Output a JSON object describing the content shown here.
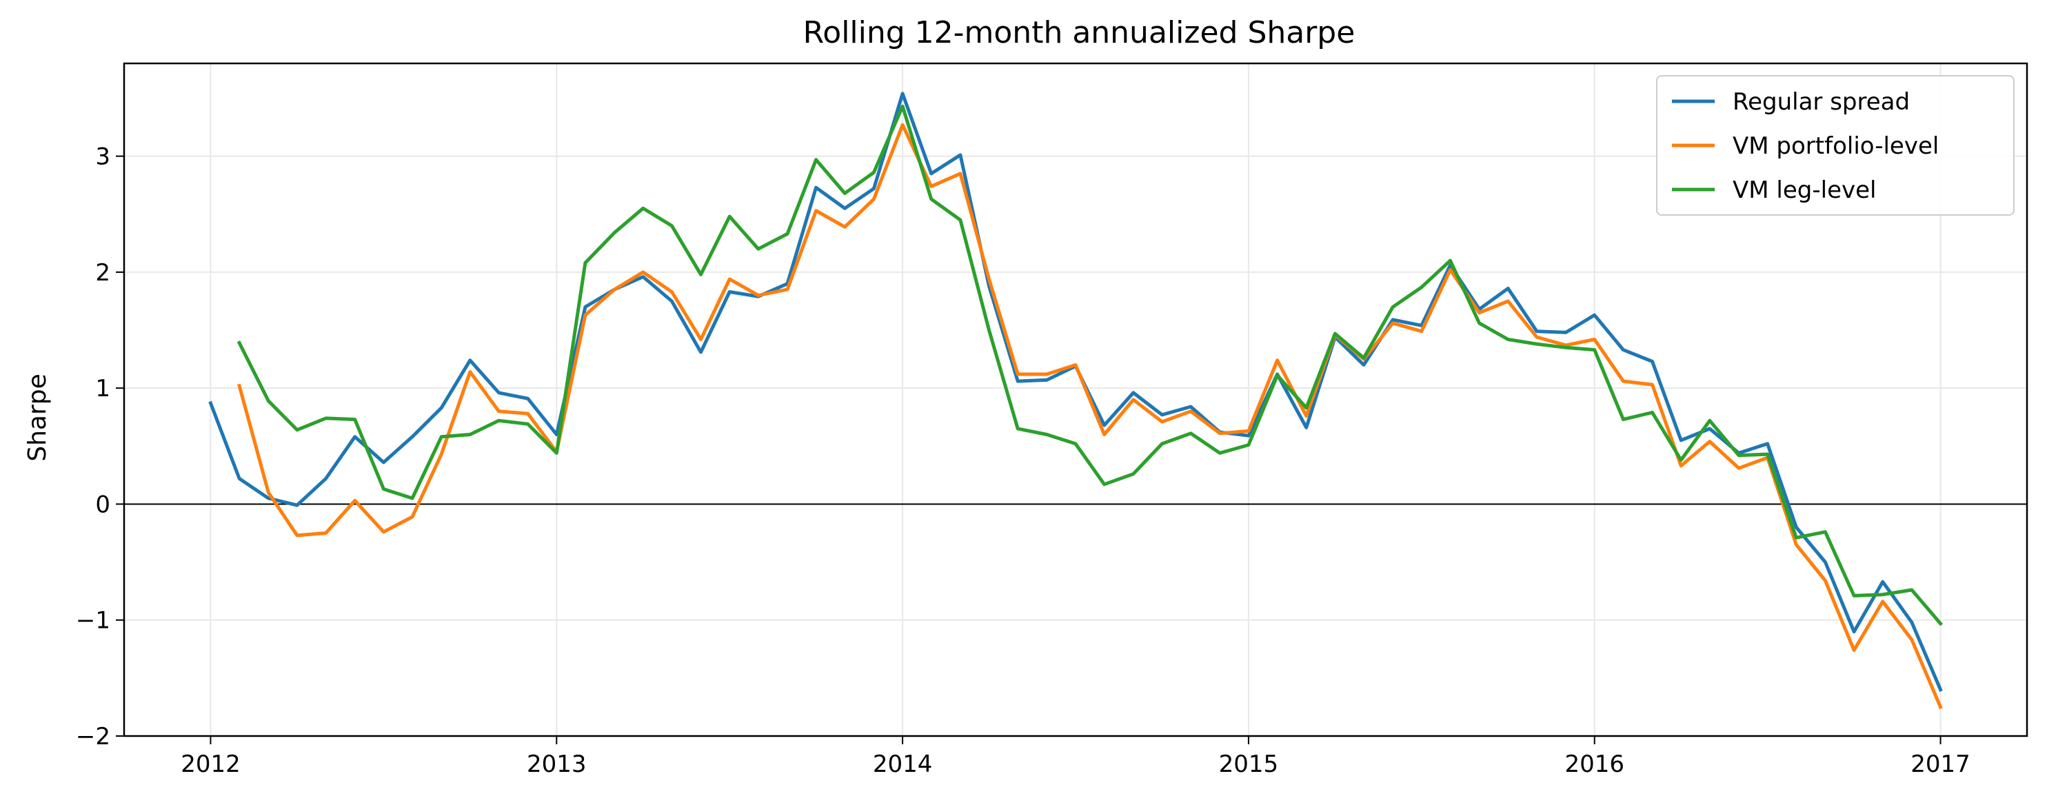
{
  "chart_data": {
    "type": "line",
    "title": "Rolling 12-month annualized Sharpe",
    "xlabel": "",
    "ylabel": "Sharpe",
    "xlim": [
      2011.75,
      2017.25
    ],
    "ylim": [
      -2,
      3.8
    ],
    "x_ticks": [
      2012,
      2013,
      2014,
      2015,
      2016,
      2017
    ],
    "x_tick_labels": [
      "2012",
      "2013",
      "2014",
      "2015",
      "2016",
      "2017"
    ],
    "y_ticks": [
      -2,
      -1,
      0,
      1,
      2,
      3
    ],
    "y_tick_labels": [
      "−2",
      "−1",
      "0",
      "1",
      "2",
      "3"
    ],
    "grid": true,
    "zero_line": true,
    "legend_position": "top-right",
    "series": [
      {
        "name": "Regular spread",
        "color": "#1f77b4",
        "x": [
          2012.0,
          2012.083,
          2012.167,
          2012.25,
          2012.333,
          2012.417,
          2012.5,
          2012.583,
          2012.667,
          2012.75,
          2012.833,
          2012.917,
          2013.0,
          2013.083,
          2013.167,
          2013.25,
          2013.333,
          2013.417,
          2013.5,
          2013.583,
          2013.667,
          2013.75,
          2013.833,
          2013.917,
          2014.0,
          2014.083,
          2014.167,
          2014.25,
          2014.333,
          2014.417,
          2014.5,
          2014.583,
          2014.667,
          2014.75,
          2014.833,
          2014.917,
          2015.0,
          2015.083,
          2015.167,
          2015.25,
          2015.333,
          2015.417,
          2015.5,
          2015.583,
          2015.667,
          2015.75,
          2015.833,
          2015.917,
          2016.0,
          2016.083,
          2016.167,
          2016.25,
          2016.333,
          2016.417,
          2016.5,
          2016.583,
          2016.667,
          2016.75,
          2016.833,
          2016.917,
          2017.0
        ],
        "y": [
          0.87,
          0.22,
          0.05,
          -0.01,
          0.22,
          0.58,
          0.36,
          0.58,
          0.83,
          1.24,
          0.96,
          0.91,
          0.6,
          1.7,
          1.85,
          1.96,
          1.75,
          1.31,
          1.83,
          1.79,
          1.9,
          2.73,
          2.55,
          2.72,
          3.54,
          2.85,
          3.01,
          1.88,
          1.06,
          1.07,
          1.19,
          0.68,
          0.96,
          0.77,
          0.84,
          0.62,
          0.59,
          1.12,
          0.66,
          1.44,
          1.2,
          1.59,
          1.54,
          2.06,
          1.68,
          1.86,
          1.49,
          1.48,
          1.63,
          1.33,
          1.23,
          0.55,
          0.65,
          0.44,
          0.52,
          -0.2,
          -0.5,
          -1.1,
          -0.67,
          -1.02,
          -1.6
        ]
      },
      {
        "name": "VM portfolio-level",
        "color": "#ff7f0e",
        "x": [
          2012.083,
          2012.167,
          2012.25,
          2012.333,
          2012.417,
          2012.5,
          2012.583,
          2012.667,
          2012.75,
          2012.833,
          2012.917,
          2013.0,
          2013.083,
          2013.167,
          2013.25,
          2013.333,
          2013.417,
          2013.5,
          2013.583,
          2013.667,
          2013.75,
          2013.833,
          2013.917,
          2014.0,
          2014.083,
          2014.167,
          2014.25,
          2014.333,
          2014.417,
          2014.5,
          2014.583,
          2014.667,
          2014.75,
          2014.833,
          2014.917,
          2015.0,
          2015.083,
          2015.167,
          2015.25,
          2015.333,
          2015.417,
          2015.5,
          2015.583,
          2015.667,
          2015.75,
          2015.833,
          2015.917,
          2016.0,
          2016.083,
          2016.167,
          2016.25,
          2016.333,
          2016.417,
          2016.5,
          2016.583,
          2016.667,
          2016.75,
          2016.833,
          2016.917,
          2017.0
        ],
        "y": [
          1.02,
          0.1,
          -0.27,
          -0.25,
          0.03,
          -0.24,
          -0.11,
          0.43,
          1.14,
          0.8,
          0.78,
          0.45,
          1.63,
          1.85,
          2.0,
          1.83,
          1.42,
          1.94,
          1.8,
          1.85,
          2.53,
          2.39,
          2.63,
          3.27,
          2.74,
          2.85,
          1.94,
          1.12,
          1.12,
          1.2,
          0.6,
          0.9,
          0.71,
          0.8,
          0.61,
          0.63,
          1.24,
          0.76,
          1.46,
          1.25,
          1.56,
          1.49,
          2.02,
          1.65,
          1.75,
          1.44,
          1.37,
          1.42,
          1.06,
          1.03,
          0.33,
          0.54,
          0.31,
          0.4,
          -0.35,
          -0.66,
          -1.26,
          -0.84,
          -1.17,
          -1.75
        ]
      },
      {
        "name": "VM leg-level",
        "color": "#2ca02c",
        "x": [
          2012.083,
          2012.167,
          2012.25,
          2012.333,
          2012.417,
          2012.5,
          2012.583,
          2012.667,
          2012.75,
          2012.833,
          2012.917,
          2013.0,
          2013.083,
          2013.167,
          2013.25,
          2013.333,
          2013.417,
          2013.5,
          2013.583,
          2013.667,
          2013.75,
          2013.833,
          2013.917,
          2014.0,
          2014.083,
          2014.167,
          2014.25,
          2014.333,
          2014.417,
          2014.5,
          2014.583,
          2014.667,
          2014.75,
          2014.833,
          2014.917,
          2015.0,
          2015.083,
          2015.167,
          2015.25,
          2015.333,
          2015.417,
          2015.5,
          2015.583,
          2015.667,
          2015.75,
          2015.833,
          2015.917,
          2016.0,
          2016.083,
          2016.167,
          2016.25,
          2016.333,
          2016.417,
          2016.5,
          2016.583,
          2016.667,
          2016.75,
          2016.833,
          2016.917,
          2017.0
        ],
        "y": [
          1.39,
          0.89,
          0.64,
          0.74,
          0.73,
          0.13,
          0.05,
          0.58,
          0.6,
          0.72,
          0.69,
          0.44,
          2.08,
          2.34,
          2.55,
          2.4,
          1.98,
          2.48,
          2.2,
          2.33,
          2.97,
          2.68,
          2.86,
          3.43,
          2.63,
          2.45,
          1.5,
          0.65,
          0.6,
          0.52,
          0.17,
          0.26,
          0.52,
          0.61,
          0.44,
          0.51,
          1.11,
          0.83,
          1.47,
          1.26,
          1.7,
          1.87,
          2.1,
          1.56,
          1.42,
          1.38,
          1.35,
          1.33,
          0.73,
          0.79,
          0.38,
          0.72,
          0.42,
          0.43,
          -0.29,
          -0.24,
          -0.79,
          -0.78,
          -0.74,
          -1.03
        ]
      }
    ]
  }
}
